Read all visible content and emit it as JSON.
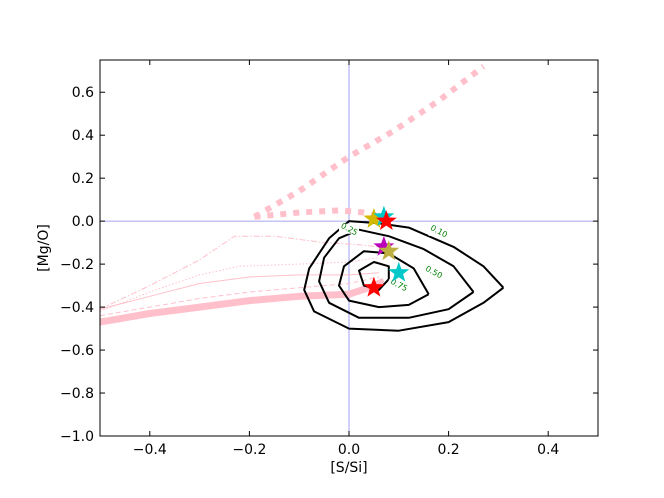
{
  "chart_data": {
    "type": "line",
    "title": "",
    "xlabel": "[S/Si]",
    "ylabel": "[Mg/O]",
    "xlim": [
      -0.5,
      0.5
    ],
    "ylim": [
      -1.0,
      0.75
    ],
    "xticks": [
      -0.4,
      -0.2,
      0.0,
      0.2,
      0.4
    ],
    "yticks": [
      -1.0,
      -0.8,
      -0.6,
      -0.4,
      -0.2,
      0.0,
      0.2,
      0.4,
      0.6
    ],
    "xtick_labels": [
      "−0.4",
      "−0.2",
      "0.0",
      "0.2",
      "0.4"
    ],
    "ytick_labels": [
      "−1.0",
      "−0.8",
      "−0.6",
      "−0.4",
      "−0.2",
      "0.0",
      "0.2",
      "0.4",
      "0.6"
    ],
    "grid": false,
    "reference_lines": {
      "x": 0.0,
      "y": 0.0,
      "color": "#8888ee"
    },
    "colors": {
      "tracks": "#ffc0cb",
      "contours": "#000000",
      "contour_labels": "#008000"
    },
    "tracks": [
      {
        "style": "dotted-thick",
        "points": [
          [
            -0.19,
            0.02
          ],
          [
            -0.1,
            0.04
          ],
          [
            -0.02,
            0.05
          ],
          [
            0.03,
            0.04
          ],
          [
            0.06,
            0.02
          ]
        ]
      },
      {
        "style": "dotted-thick",
        "points": [
          [
            -0.19,
            0.02
          ],
          [
            -0.1,
            0.14
          ],
          [
            0.0,
            0.3
          ],
          [
            0.09,
            0.42
          ],
          [
            0.18,
            0.56
          ],
          [
            0.27,
            0.72
          ]
        ]
      },
      {
        "style": "solid-thick",
        "points": [
          [
            -0.5,
            -0.47
          ],
          [
            -0.4,
            -0.43
          ],
          [
            -0.3,
            -0.4
          ],
          [
            -0.2,
            -0.37
          ],
          [
            -0.1,
            -0.35
          ],
          [
            0.0,
            -0.34
          ],
          [
            0.04,
            -0.31
          ],
          [
            0.07,
            -0.28
          ]
        ]
      },
      {
        "style": "dashed-thin",
        "points": [
          [
            -0.5,
            -0.44
          ],
          [
            -0.4,
            -0.4
          ],
          [
            -0.3,
            -0.36
          ],
          [
            -0.2,
            -0.33
          ],
          [
            -0.1,
            -0.31
          ],
          [
            0.0,
            -0.29
          ],
          [
            0.06,
            -0.26
          ]
        ]
      },
      {
        "style": "solid-thin",
        "points": [
          [
            -0.5,
            -0.41
          ],
          [
            -0.4,
            -0.35
          ],
          [
            -0.3,
            -0.29
          ],
          [
            -0.2,
            -0.26
          ],
          [
            -0.1,
            -0.25
          ],
          [
            0.0,
            -0.25
          ],
          [
            0.06,
            -0.24
          ]
        ]
      },
      {
        "style": "dotted-thin",
        "points": [
          [
            -0.5,
            -0.42
          ],
          [
            -0.4,
            -0.33
          ],
          [
            -0.3,
            -0.25
          ],
          [
            -0.22,
            -0.21
          ],
          [
            -0.1,
            -0.2
          ],
          [
            0.0,
            -0.19
          ],
          [
            0.06,
            -0.17
          ]
        ]
      },
      {
        "style": "dashdot-thin",
        "points": [
          [
            -0.5,
            -0.41
          ],
          [
            -0.4,
            -0.3
          ],
          [
            -0.3,
            -0.18
          ],
          [
            -0.23,
            -0.07
          ],
          [
            -0.15,
            -0.07
          ],
          [
            -0.05,
            -0.1
          ],
          [
            0.02,
            -0.11
          ],
          [
            0.06,
            -0.12
          ]
        ]
      }
    ],
    "contours": [
      {
        "level": "0.10",
        "points": [
          [
            0.31,
            -0.31
          ],
          [
            0.27,
            -0.38
          ],
          [
            0.2,
            -0.47
          ],
          [
            0.1,
            -0.51
          ],
          [
            0.0,
            -0.5
          ],
          [
            -0.07,
            -0.42
          ],
          [
            -0.09,
            -0.32
          ],
          [
            -0.08,
            -0.22
          ],
          [
            -0.04,
            -0.08
          ],
          [
            0.0,
            0.0
          ],
          [
            0.06,
            -0.01
          ],
          [
            0.12,
            -0.03
          ],
          [
            0.21,
            -0.12
          ],
          [
            0.27,
            -0.21
          ],
          [
            0.31,
            -0.31
          ]
        ],
        "label_at": [
          0.18,
          -0.05
        ]
      },
      {
        "level": "0.25",
        "points": [
          [
            0.25,
            -0.33
          ],
          [
            0.2,
            -0.41
          ],
          [
            0.12,
            -0.45
          ],
          [
            0.02,
            -0.45
          ],
          [
            -0.04,
            -0.38
          ],
          [
            -0.06,
            -0.28
          ],
          [
            -0.05,
            -0.17
          ],
          [
            -0.02,
            -0.08
          ],
          [
            0.02,
            -0.04
          ],
          [
            0.08,
            -0.07
          ],
          [
            0.15,
            -0.13
          ],
          [
            0.21,
            -0.21
          ],
          [
            0.25,
            -0.33
          ]
        ],
        "label_at": [
          0.0,
          -0.04
        ]
      },
      {
        "level": "0.50",
        "points": [
          [
            0.16,
            -0.34
          ],
          [
            0.12,
            -0.39
          ],
          [
            0.06,
            -0.4
          ],
          [
            0.0,
            -0.37
          ],
          [
            -0.02,
            -0.3
          ],
          [
            -0.01,
            -0.21
          ],
          [
            0.03,
            -0.14
          ],
          [
            0.08,
            -0.15
          ],
          [
            0.13,
            -0.22
          ],
          [
            0.16,
            -0.34
          ]
        ],
        "label_at": [
          0.17,
          -0.24
        ]
      },
      {
        "level": "0.75",
        "points": [
          [
            0.08,
            -0.27
          ],
          [
            0.06,
            -0.32
          ],
          [
            0.03,
            -0.3
          ],
          [
            0.02,
            -0.23
          ],
          [
            0.05,
            -0.19
          ],
          [
            0.08,
            -0.21
          ],
          [
            0.08,
            -0.27
          ]
        ],
        "label_at": [
          0.1,
          -0.3
        ]
      }
    ],
    "stars": [
      {
        "x": 0.05,
        "y": 0.01,
        "color": "#d4b800"
      },
      {
        "x": 0.07,
        "y": 0.02,
        "color": "#00c8c8"
      },
      {
        "x": 0.07,
        "y": -0.12,
        "color": "#bb00bb"
      },
      {
        "x": 0.08,
        "y": -0.14,
        "color": "#bdb040"
      },
      {
        "x": 0.1,
        "y": -0.24,
        "color": "#00c8c8"
      },
      {
        "x": 0.05,
        "y": -0.31,
        "color": "#ff0000"
      },
      {
        "x": 0.075,
        "y": 0.0,
        "color": "#ff0000"
      }
    ]
  }
}
